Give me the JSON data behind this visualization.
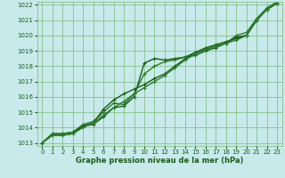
{
  "x": [
    0,
    1,
    2,
    3,
    4,
    5,
    6,
    7,
    8,
    9,
    10,
    11,
    12,
    13,
    14,
    15,
    16,
    17,
    18,
    19,
    20,
    21,
    22,
    23
  ],
  "series": [
    [
      1013.0,
      1013.6,
      1013.6,
      1013.7,
      1014.1,
      1014.2,
      1014.7,
      1015.3,
      1015.4,
      1016.0,
      1018.2,
      1018.5,
      1018.4,
      1018.5,
      1018.6,
      1018.7,
      1019.0,
      1019.2,
      1019.5,
      1019.9,
      1020.0,
      1021.0,
      1021.7,
      1022.1
    ],
    [
      1013.0,
      1013.6,
      1013.6,
      1013.7,
      1014.2,
      1014.4,
      1015.0,
      1015.6,
      1015.5,
      1016.2,
      1017.5,
      1018.0,
      1018.3,
      1018.4,
      1018.6,
      1018.9,
      1019.1,
      1019.3,
      1019.5,
      1020.0,
      1020.2,
      1021.1,
      1021.8,
      1022.2
    ],
    [
      1013.0,
      1013.5,
      1013.5,
      1013.6,
      1014.1,
      1014.3,
      1015.2,
      1015.8,
      1016.2,
      1016.5,
      1016.8,
      1017.2,
      1017.5,
      1018.0,
      1018.5,
      1018.9,
      1019.2,
      1019.4,
      1019.6,
      1019.8,
      1020.0,
      1021.0,
      1021.7,
      1022.1
    ],
    [
      1013.0,
      1013.5,
      1013.5,
      1013.6,
      1014.0,
      1014.3,
      1014.8,
      1015.3,
      1015.7,
      1016.2,
      1016.6,
      1017.0,
      1017.4,
      1017.9,
      1018.4,
      1018.8,
      1019.1,
      1019.3,
      1019.5,
      1019.7,
      1020.0,
      1021.0,
      1021.7,
      1022.1
    ]
  ],
  "ylim": [
    1013,
    1022
  ],
  "yticks": [
    1013,
    1014,
    1015,
    1016,
    1017,
    1018,
    1019,
    1020,
    1021,
    1022
  ],
  "xlim": [
    0,
    23
  ],
  "xticks": [
    0,
    1,
    2,
    3,
    4,
    5,
    6,
    7,
    8,
    9,
    10,
    11,
    12,
    13,
    14,
    15,
    16,
    17,
    18,
    19,
    20,
    21,
    22,
    23
  ],
  "xlabel": "Graphe pression niveau de la mer (hPa)",
  "bg_color": "#c8eaea",
  "grid_color": "#7ab87a",
  "line_colors": [
    "#1a5c1a",
    "#2a7a2a",
    "#1a5c1a",
    "#2a7a2a"
  ],
  "tick_label_color": "#1a5c1a",
  "xlabel_color": "#1a5c1a"
}
